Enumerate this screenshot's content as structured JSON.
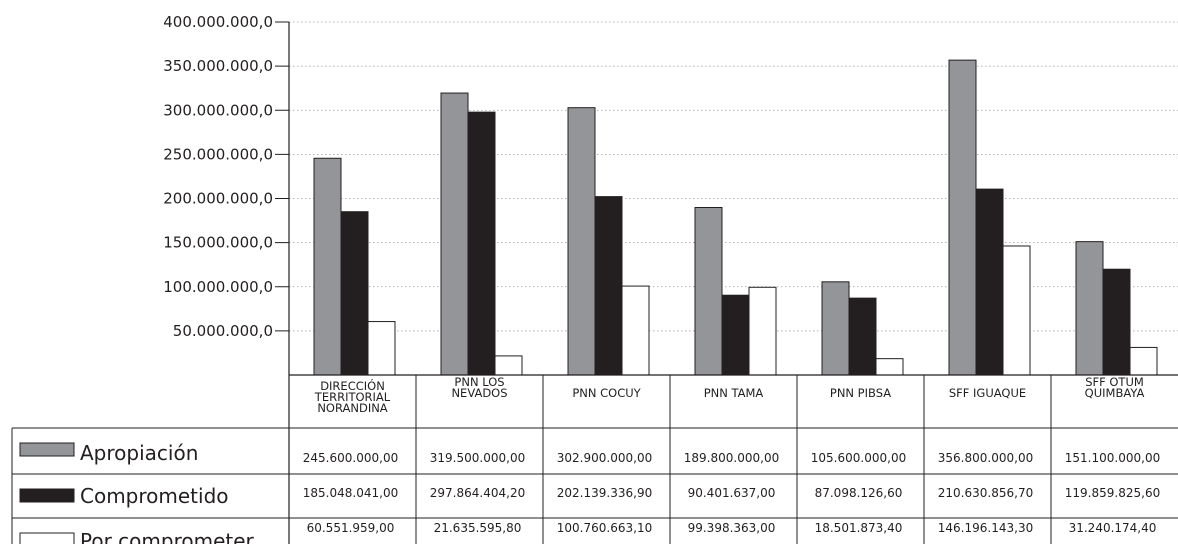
{
  "chart_data": {
    "type": "bar",
    "ylim": [
      0,
      400000000
    ],
    "y_ticks": [
      {
        "value": 50000000,
        "label": "50.000.000,0"
      },
      {
        "value": 100000000,
        "label": "100.000.000,0"
      },
      {
        "value": 150000000,
        "label": "150.000.000,0"
      },
      {
        "value": 200000000,
        "label": "200.000.000,0"
      },
      {
        "value": 250000000,
        "label": "250.000.000,0"
      },
      {
        "value": 300000000,
        "label": "300.000.000,0"
      },
      {
        "value": 350000000,
        "label": "350.000.000,0"
      },
      {
        "value": 400000000,
        "label": "400.000.000,0"
      }
    ],
    "grid": true,
    "categories": [
      [
        "DIRECCIÓN",
        "TERRITORIAL",
        "NORANDINA"
      ],
      [
        "PNN LOS",
        "NEVADOS"
      ],
      [
        "PNN COCUY"
      ],
      [
        "PNN TAMA"
      ],
      [
        "PNN PIBSA"
      ],
      [
        "SFF IGUAQUE"
      ],
      [
        "SFF OTUM",
        "QUIMBAYA"
      ]
    ],
    "series": [
      {
        "name": "Apropiación",
        "color": "#939598",
        "values": [
          245600000,
          319500000,
          302900000,
          189800000,
          105600000,
          356800000,
          151100000
        ],
        "labels": [
          "245.600.000,00",
          "319.500.000,00",
          "302.900.000,00",
          "189.800.000,00",
          "105.600.000,00",
          "356.800.000,00",
          "151.100.000,00"
        ]
      },
      {
        "name": "Comprometido",
        "color": "#231f20",
        "values": [
          185048041,
          297864404.2,
          202139336.9,
          90401637,
          87098126.6,
          210630856.7,
          119859825.6
        ],
        "labels": [
          "185.048.041,00",
          "297.864.404,20",
          "202.139.336,90",
          "90.401.637,00",
          "87.098.126,60",
          "210.630.856,70",
          "119.859.825,60"
        ]
      },
      {
        "name": "Por comprometer",
        "color": "#ffffff",
        "values": [
          60551959,
          21635595.8,
          100760663.1,
          99398363,
          18501873.4,
          146196143.3,
          31240174.4
        ],
        "labels": [
          "60.551.959,00",
          "21.635.595,80",
          "100.760.663,10",
          "99.398.363,00",
          "18.501.873,40",
          "146.196.143,30",
          "31.240.174,40"
        ]
      }
    ]
  }
}
